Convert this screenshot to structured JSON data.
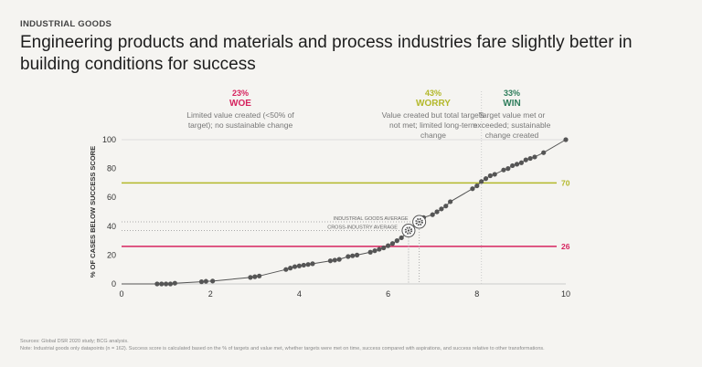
{
  "kicker": "INDUSTRIAL GOODS",
  "title": "Engineering products and materials and process industries fare slightly better in building conditions for success",
  "zones": [
    {
      "pct": "23%",
      "name": "WOE",
      "desc": "Limited value created (<50% of target); no sustainable change",
      "color": "#d6245f"
    },
    {
      "pct": "43%",
      "name": "WORRY",
      "desc": "Value created but total targets not met; limited long-term change",
      "color": "#b3b82a"
    },
    {
      "pct": "33%",
      "name": "WIN",
      "desc": "Target value met or exceeded; sustainable change created",
      "color": "#2e7d5b"
    }
  ],
  "chart_data": {
    "type": "scatter",
    "xlabel": "",
    "ylabel": "% OF CASES BELOW SUCCESS SCORE",
    "xlim": [
      0,
      10
    ],
    "ylim": [
      0,
      100
    ],
    "xticks": [
      "0",
      "2",
      "4",
      "6",
      "8",
      "10"
    ],
    "yticks": [
      "0",
      "20",
      "40",
      "60",
      "80",
      "100"
    ],
    "points": [
      [
        0.8,
        0
      ],
      [
        0.9,
        0
      ],
      [
        1.0,
        0
      ],
      [
        1.1,
        0
      ],
      [
        1.2,
        0.5
      ],
      [
        1.8,
        1.5
      ],
      [
        1.9,
        1.8
      ],
      [
        2.05,
        2
      ],
      [
        2.9,
        4.5
      ],
      [
        3.0,
        5
      ],
      [
        3.1,
        5.5
      ],
      [
        3.7,
        10
      ],
      [
        3.8,
        11
      ],
      [
        3.9,
        12
      ],
      [
        4.0,
        12.5
      ],
      [
        4.1,
        13
      ],
      [
        4.2,
        13.5
      ],
      [
        4.3,
        14
      ],
      [
        4.7,
        16
      ],
      [
        4.8,
        16.5
      ],
      [
        4.9,
        17
      ],
      [
        5.1,
        19
      ],
      [
        5.2,
        19.5
      ],
      [
        5.3,
        20
      ],
      [
        5.6,
        22
      ],
      [
        5.7,
        23
      ],
      [
        5.8,
        24
      ],
      [
        5.9,
        25
      ],
      [
        6.0,
        26.5
      ],
      [
        6.1,
        28
      ],
      [
        6.2,
        30
      ],
      [
        6.3,
        32
      ],
      [
        6.8,
        46
      ],
      [
        7.0,
        48
      ],
      [
        7.1,
        50
      ],
      [
        7.2,
        52
      ],
      [
        7.3,
        54
      ],
      [
        7.4,
        57
      ],
      [
        7.9,
        66
      ],
      [
        8.0,
        68
      ],
      [
        8.1,
        71
      ],
      [
        8.2,
        73
      ],
      [
        8.3,
        75
      ],
      [
        8.4,
        76
      ],
      [
        8.6,
        79
      ],
      [
        8.7,
        80
      ],
      [
        8.8,
        82
      ],
      [
        8.9,
        83
      ],
      [
        9.0,
        84
      ],
      [
        9.1,
        86
      ],
      [
        9.2,
        87
      ],
      [
        9.3,
        88
      ],
      [
        9.5,
        91
      ],
      [
        10,
        100
      ]
    ],
    "thresholds": [
      {
        "label": "70",
        "y": 70,
        "color": "#b3b82a"
      },
      {
        "label": "26",
        "y": 26,
        "color": "#d6245f"
      }
    ],
    "win_divider_x": 8.1,
    "averages": [
      {
        "label": "INDUSTRIAL GOODS AVERAGE",
        "x": 6.7,
        "y": 43
      },
      {
        "label": "CROSS-INDUSTRY AVERAGE",
        "x": 6.46,
        "y": 37
      }
    ]
  },
  "footer": {
    "sources": "Sources: Global DSR 2020 study; BCG analysis.",
    "note": "Note: Industrial goods only datapoints (n = 162). Success score is calculated based on the % of targets and value met, whether targets were met on time, success compared with aspirations, and success relative to other transformations."
  }
}
